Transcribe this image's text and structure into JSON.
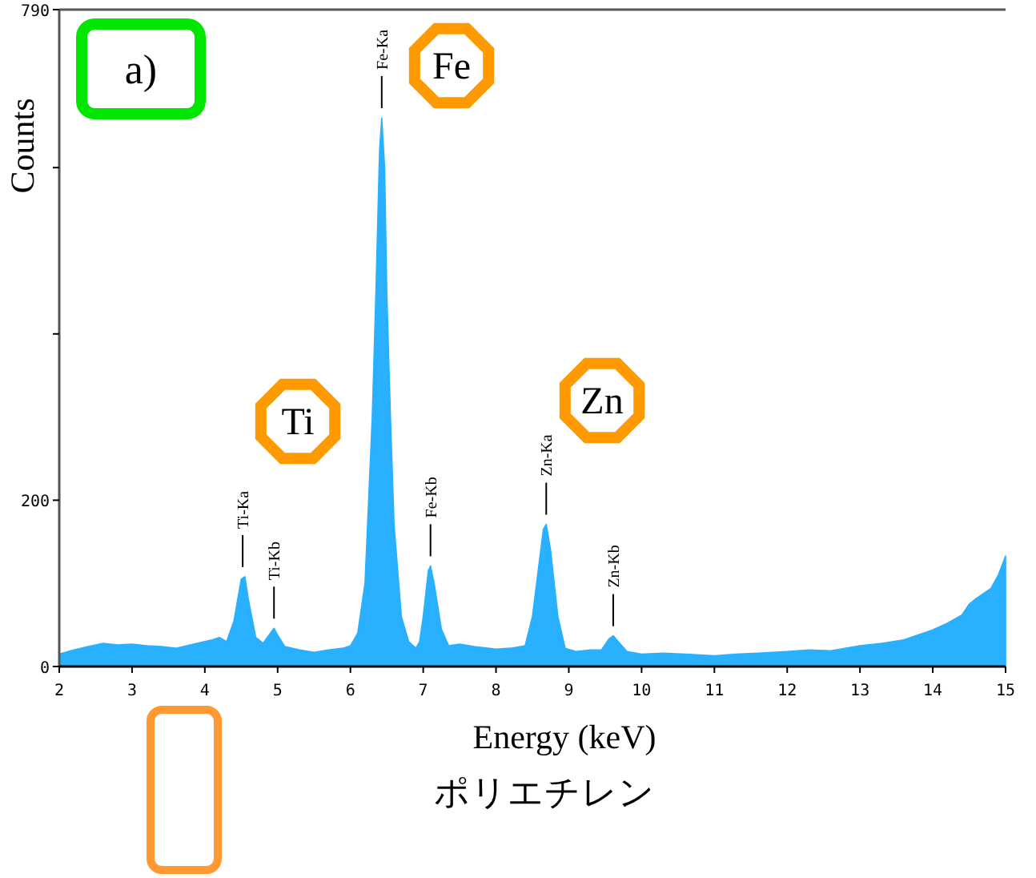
{
  "chart_data": {
    "type": "area",
    "xlabel": "Energy (keV)",
    "ylabel": "Counts",
    "x": [
      2,
      2.2,
      2.4,
      2.6,
      2.8,
      3,
      3.2,
      3.4,
      3.6,
      3.8,
      4,
      4.1,
      4.2,
      4.3,
      4.4,
      4.5,
      4.55,
      4.6,
      4.7,
      4.8,
      4.9,
      4.95,
      5,
      5.1,
      5.3,
      5.5,
      5.7,
      5.9,
      6,
      6.1,
      6.2,
      6.3,
      6.35,
      6.4,
      6.43,
      6.47,
      6.5,
      6.55,
      6.6,
      6.7,
      6.8,
      6.9,
      6.95,
      7,
      7.07,
      7.1,
      7.15,
      7.25,
      7.35,
      7.5,
      7.7,
      8,
      8.2,
      8.4,
      8.5,
      8.6,
      8.65,
      8.69,
      8.75,
      8.85,
      8.95,
      9.1,
      9.3,
      9.45,
      9.55,
      9.61,
      9.7,
      9.8,
      10,
      10.3,
      10.6,
      11,
      11.3,
      11.6,
      12,
      12.3,
      12.6,
      13,
      13.3,
      13.6,
      14,
      14.2,
      14.4,
      14.5,
      14.6,
      14.7,
      14.8,
      14.9,
      15
    ],
    "series": [
      {
        "color": "#29b0ff",
        "values": [
          15,
          20,
          24,
          28,
          26,
          27,
          25,
          24,
          22,
          26,
          30,
          32,
          35,
          30,
          55,
          105,
          108,
          80,
          35,
          28,
          40,
          46,
          38,
          24,
          20,
          17,
          20,
          22,
          25,
          40,
          100,
          300,
          450,
          620,
          660,
          600,
          450,
          300,
          170,
          60,
          30,
          22,
          30,
          60,
          115,
          121,
          100,
          45,
          25,
          27,
          24,
          21,
          22,
          25,
          60,
          130,
          165,
          171,
          140,
          60,
          22,
          18,
          20,
          20,
          33,
          37,
          28,
          18,
          15,
          16,
          15,
          13,
          15,
          16,
          18,
          20,
          19,
          25,
          28,
          32,
          44,
          52,
          62,
          75,
          82,
          88,
          94,
          110,
          133
        ]
      }
    ],
    "xlim": [
      2,
      15
    ],
    "ylim": [
      0,
      790
    ],
    "xticks": [
      2,
      3,
      4,
      5,
      6,
      7,
      8,
      9,
      10,
      11,
      12,
      13,
      14,
      15
    ],
    "yticks": [
      0,
      200,
      {
        "value": 400,
        "label": null
      },
      {
        "value": 600,
        "label": null
      },
      790
    ],
    "annotations": [
      "a)",
      "Ti",
      "Fe",
      "Zn",
      "ポリエチレン",
      {
        "text": "Ti-Ka",
        "x": 4.52,
        "y": 108
      },
      {
        "text": "Ti-Kb",
        "x": 4.95,
        "y": 46
      },
      {
        "text": "Fe-Ka",
        "x": 6.43,
        "y": 660
      },
      {
        "text": "Fe-Kb",
        "x": 7.1,
        "y": 121
      },
      {
        "text": "Zn-Ka",
        "x": 8.69,
        "y": 171
      },
      {
        "text": "Zn-Kb",
        "x": 9.61,
        "y": 37
      }
    ]
  }
}
